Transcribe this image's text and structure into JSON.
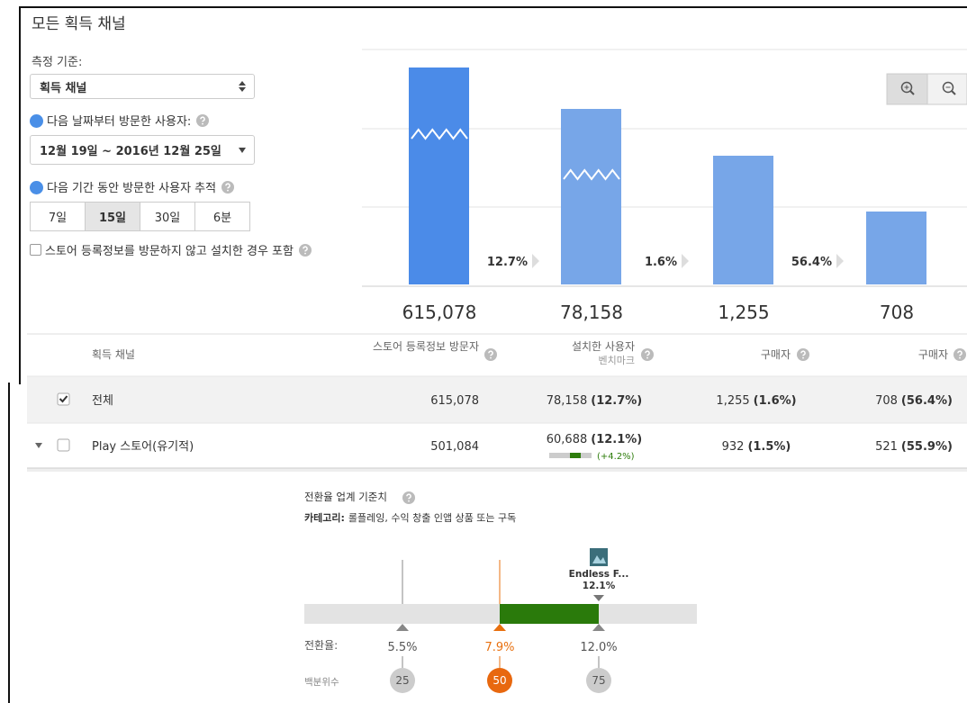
{
  "header": {
    "title": "모든 획득 채널"
  },
  "controls": {
    "measure_label": "측정 기준:",
    "measure_value": "획득 채널",
    "start_label": "다음 날짜부터 방문한 사용자:",
    "date_range": "12월 19일 ~ 2016년 12월 25일",
    "track_label": "다음 기간 동안 방문한 사용자 추적",
    "periods": [
      "7일",
      "15일",
      "30일",
      "6분"
    ],
    "selected_period": 1,
    "include_label": "스토어 등록정보를 방문하지 않고 설치한 경우 포함",
    "include_checked": false
  },
  "funnel": {
    "values": [
      "615,078",
      "78,158",
      "1,255",
      "708"
    ],
    "conversion": [
      "12.7%",
      "1.6%",
      "56.4%"
    ]
  },
  "table": {
    "headers": [
      "획득 채널",
      "스토어 등록정보 방문자",
      "설치한 사용자",
      "구매자",
      "구매자"
    ],
    "benchmark_header": "벤치마크",
    "rows": [
      {
        "checked": true,
        "expandable": false,
        "channel": "전체",
        "visitors": "615,078",
        "installs": "78,158",
        "install_rate": "(12.7%)",
        "buyers": "1,255",
        "buyer_rate": "(1.6%)",
        "repeat": "708",
        "repeat_rate": "(56.4%)"
      },
      {
        "checked": false,
        "expandable": true,
        "channel": "Play 스토어(유기적)",
        "visitors": "501,084",
        "installs": "60,688",
        "install_rate": "(12.1%)",
        "benchmark_diff": "(+4.2%)",
        "buyers": "932",
        "buyer_rate": "(1.5%)",
        "repeat": "521",
        "repeat_rate": "(55.9%)"
      }
    ]
  },
  "benchmark": {
    "title": "전환율 업계 기준치",
    "category_label": "카테고리:",
    "category": "롤플레잉, 수익 창출 인앱 상품 또는 구독",
    "app_name": "Endless F...",
    "app_rate": "12.1%",
    "rate_label": "전환율:",
    "percentile_label": "백분위수",
    "percentiles": [
      {
        "percentile": "25",
        "rate": "5.5%"
      },
      {
        "percentile": "50",
        "rate": "7.9%"
      },
      {
        "percentile": "75",
        "rate": "12.0%"
      }
    ]
  }
}
